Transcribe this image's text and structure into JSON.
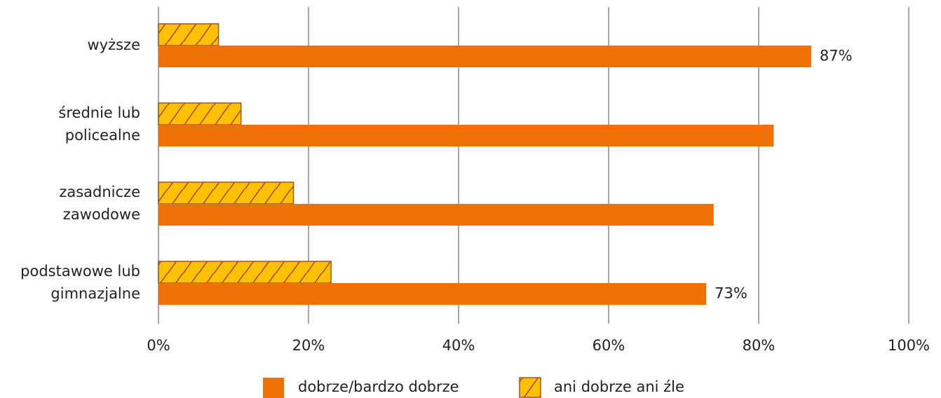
{
  "chart_data": {
    "type": "bar",
    "orientation": "horizontal",
    "categories": [
      [
        "wyższe"
      ],
      [
        "średnie lub",
        "policealne"
      ],
      [
        "zasadnicze",
        "zawodowe"
      ],
      [
        "podstawowe lub",
        "gimnazjalne"
      ]
    ],
    "series": [
      {
        "name": "dobrze/bardzo dobrze",
        "color": "#ee7203",
        "values": [
          87,
          82,
          74,
          73
        ],
        "value_labels": [
          "87%",
          null,
          null,
          "73%"
        ]
      },
      {
        "name": "ani dobrze ani źle",
        "color": "#ffc000",
        "hatch": "#a0522d",
        "values": [
          8,
          11,
          18,
          23
        ]
      }
    ],
    "xlim": [
      0,
      100
    ],
    "xticks": [
      {
        "value": 0,
        "label": "0%"
      },
      {
        "value": 20,
        "label": "20%"
      },
      {
        "value": 40,
        "label": "40%"
      },
      {
        "value": 60,
        "label": "60%"
      },
      {
        "value": 80,
        "label": "80%"
      },
      {
        "value": 100,
        "label": "100%"
      }
    ],
    "grid": true,
    "legend": "bottom"
  }
}
